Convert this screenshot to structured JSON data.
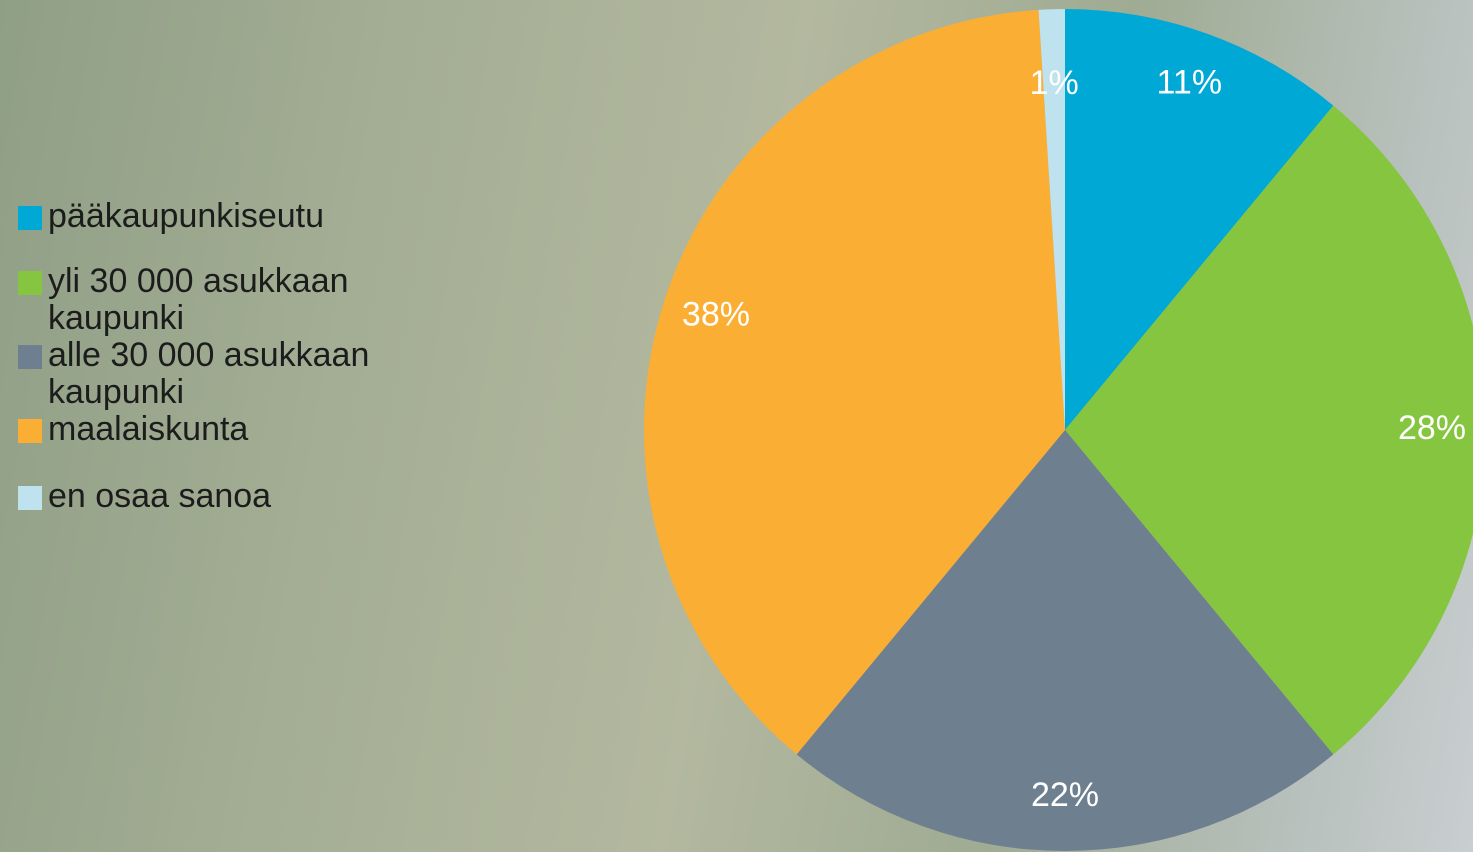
{
  "chart_data": {
    "type": "pie",
    "categories": [
      "pääkaupunkiseutu",
      "yli 30 000 asukkaan kaupunki",
      "alle 30 000 asukkaan kaupunki",
      "maalaiskunta",
      "en osaa sanoa"
    ],
    "values": [
      11,
      28,
      22,
      38,
      1
    ],
    "value_labels": [
      "11%",
      "28%",
      "22%",
      "38%",
      "1%"
    ],
    "colors": [
      "#00a8d6",
      "#86c540",
      "#6e7f90",
      "#fbae34",
      "#bfe3ee"
    ],
    "legend": "left"
  }
}
